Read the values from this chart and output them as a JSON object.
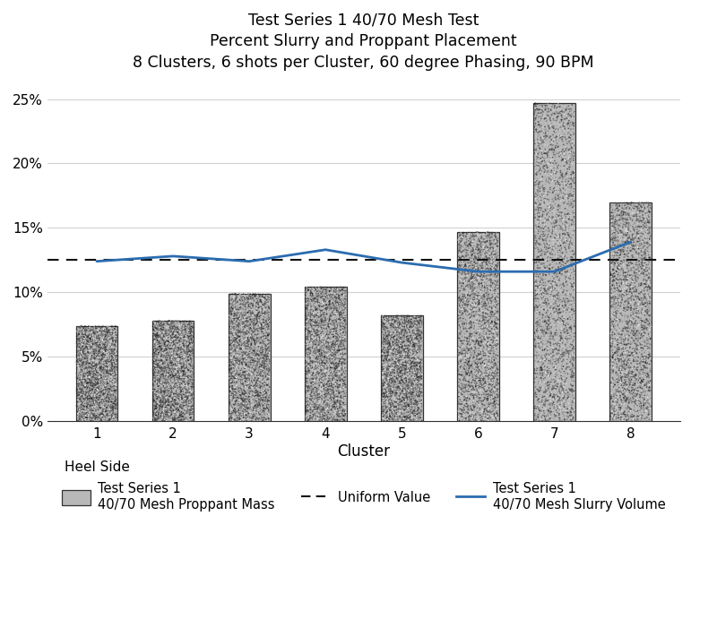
{
  "title_line1": "Test Series 1 40/70 Mesh Test",
  "title_line2": "Percent Slurry and Proppant Placement",
  "title_line3": "8 Clusters, 6 shots per Cluster, 60 degree Phasing, 90 BPM",
  "clusters": [
    1,
    2,
    3,
    4,
    5,
    6,
    7,
    8
  ],
  "proppant_mass": [
    7.4,
    7.8,
    9.9,
    10.4,
    8.2,
    14.7,
    24.7,
    17.0
  ],
  "slurry_volume": [
    12.4,
    12.8,
    12.4,
    13.3,
    12.3,
    11.6,
    11.6,
    13.9
  ],
  "uniform_value": 12.5,
  "ylabel_ticks": [
    0,
    5,
    10,
    15,
    20,
    25
  ],
  "ylabel_labels": [
    "0%",
    "5%",
    "10%",
    "15%",
    "20%",
    "25%"
  ],
  "ylim": [
    0,
    26.5
  ],
  "xlabel": "Cluster",
  "heel_label": "Heel Side",
  "line_color": "#2b6cb0",
  "dashed_color": "#111111",
  "background_color": "#ffffff",
  "legend_bar_label1": "Test Series 1",
  "legend_bar_label2": "40/70 Mesh Proppant Mass",
  "legend_dash_label": "Uniform Value",
  "legend_line_label1": "Test Series 1",
  "legend_line_label2": "40/70 Mesh Slurry Volume",
  "title_fontsize": 12.5,
  "axis_fontsize": 12,
  "tick_fontsize": 11,
  "legend_fontsize": 10.5,
  "bar_width": 0.55,
  "bar_base_color": "#b8b8b8",
  "bar_edge_color": "#333333"
}
